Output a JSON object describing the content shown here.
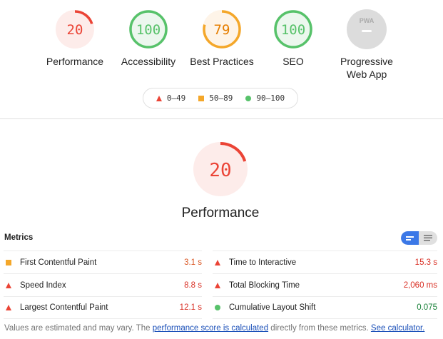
{
  "categories": [
    {
      "label": "Performance",
      "score": "20",
      "value": 20,
      "rating": "fail"
    },
    {
      "label": "Accessibility",
      "score": "100",
      "value": 100,
      "rating": "pass"
    },
    {
      "label": "Best Practices",
      "score": "79",
      "value": 79,
      "rating": "average"
    },
    {
      "label": "SEO",
      "score": "100",
      "value": 100,
      "rating": "pass"
    },
    {
      "label": "Progressive Web App",
      "label_line1": "Progressive",
      "label_line2": "Web App",
      "badge": "PWA",
      "rating": "na"
    }
  ],
  "legend": {
    "fail": "0–49",
    "average": "50–89",
    "pass": "90–100"
  },
  "colors": {
    "fail": "#eb4436",
    "average": "#f4a72a",
    "pass": "#57c26a",
    "na": "#dcdcdc",
    "accent": "#3b78e7"
  },
  "performance": {
    "score": "20",
    "value": 20,
    "title": "Performance"
  },
  "metrics": {
    "title": "Metrics",
    "left": [
      {
        "name": "First Contentful Paint",
        "value": "3.1 s",
        "rating": "average"
      },
      {
        "name": "Speed Index",
        "value": "8.8 s",
        "rating": "fail"
      },
      {
        "name": "Largest Contentful Paint",
        "value": "12.1 s",
        "rating": "fail"
      }
    ],
    "right": [
      {
        "name": "Time to Interactive",
        "value": "15.3 s",
        "rating": "fail"
      },
      {
        "name": "Total Blocking Time",
        "value": "2,060 ms",
        "rating": "fail"
      },
      {
        "name": "Cumulative Layout Shift",
        "value": "0.075",
        "rating": "pass"
      }
    ]
  },
  "footer": {
    "text1": "Values are estimated and may vary. The ",
    "link1": "performance score is calculated",
    "text2": " directly from these metrics. ",
    "link2": "See calculator."
  }
}
